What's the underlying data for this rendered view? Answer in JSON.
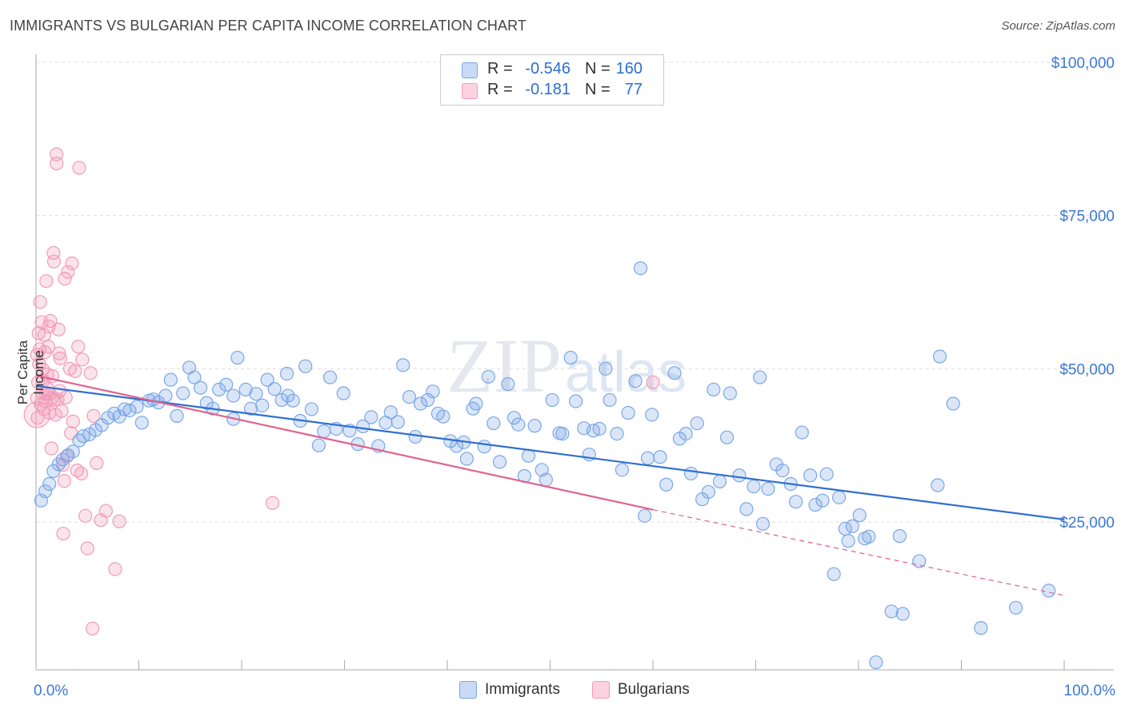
{
  "title": "IMMIGRANTS VS BULGARIAN PER CAPITA INCOME CORRELATION CHART",
  "source": "Source: ZipAtlas.com",
  "watermark": {
    "zip": "ZIP",
    "atlas": "atlas"
  },
  "legend": {
    "rows": [
      {
        "r_label": "R =",
        "r_value": "-0.546",
        "n_label": "N =",
        "n_value": "160",
        "color": "#7aa7e6"
      },
      {
        "r_label": "R =",
        "r_value": "-0.181",
        "n_label": "N =",
        "n_value": "77",
        "color": "#f29bb8"
      }
    ]
  },
  "bottom_legend": {
    "immigrants": "Immigrants",
    "bulgarians": "Bulgarians"
  },
  "chart_data": {
    "type": "scatter",
    "title": "IMMIGRANTS VS BULGARIAN PER CAPITA INCOME CORRELATION CHART",
    "xlabel": "",
    "ylabel": "Per Capita Income",
    "xlim": [
      0,
      100
    ],
    "ylim": [
      0,
      105000
    ],
    "x_tick_labels": [
      "0.0%",
      "100.0%"
    ],
    "y_ticks": [
      25000,
      50000,
      75000,
      100000
    ],
    "y_tick_labels": [
      "$25,000",
      "$50,000",
      "$75,000",
      "$100,000"
    ],
    "grid": true,
    "legend_position": "top-center",
    "series": [
      {
        "name": "Immigrants",
        "color": "#7aa7e6",
        "line_color": "#2f6fd0",
        "trend": {
          "x0": 0,
          "y0": 47200,
          "x1": 100,
          "y1": 25400
        },
        "points": [
          [
            0.5,
            28500
          ],
          [
            0.9,
            30000
          ],
          [
            1.3,
            31200
          ],
          [
            1.7,
            33300
          ],
          [
            2.2,
            34400
          ],
          [
            2.6,
            35200
          ],
          [
            3.1,
            35900
          ],
          [
            3.6,
            36500
          ],
          [
            4.2,
            38300
          ],
          [
            4.6,
            39000
          ],
          [
            5.2,
            39300
          ],
          [
            5.8,
            40000
          ],
          [
            6.4,
            40800
          ],
          [
            7.0,
            42000
          ],
          [
            7.6,
            42700
          ],
          [
            8.1,
            42200
          ],
          [
            8.6,
            43400
          ],
          [
            9.1,
            43200
          ],
          [
            9.8,
            43800
          ],
          [
            10.3,
            41200
          ],
          [
            11.0,
            44800
          ],
          [
            11.4,
            45000
          ],
          [
            11.9,
            44500
          ],
          [
            12.6,
            45600
          ],
          [
            13.1,
            48200
          ],
          [
            13.7,
            42300
          ],
          [
            14.3,
            46000
          ],
          [
            14.9,
            50200
          ],
          [
            15.4,
            48600
          ],
          [
            16.0,
            46900
          ],
          [
            16.6,
            44400
          ],
          [
            17.2,
            43500
          ],
          [
            17.8,
            46600
          ],
          [
            18.5,
            47400
          ],
          [
            19.2,
            45600
          ],
          [
            19.2,
            41800
          ],
          [
            19.6,
            51800
          ],
          [
            20.4,
            46600
          ],
          [
            20.9,
            43500
          ],
          [
            21.4,
            45900
          ],
          [
            22.0,
            44000
          ],
          [
            22.5,
            48200
          ],
          [
            23.2,
            46700
          ],
          [
            23.9,
            44900
          ],
          [
            24.5,
            45600
          ],
          [
            24.4,
            49200
          ],
          [
            25.0,
            44800
          ],
          [
            25.7,
            41500
          ],
          [
            26.2,
            50400
          ],
          [
            26.8,
            43400
          ],
          [
            27.5,
            37500
          ],
          [
            28.0,
            39800
          ],
          [
            28.6,
            48600
          ],
          [
            29.2,
            40200
          ],
          [
            29.9,
            46000
          ],
          [
            30.5,
            39900
          ],
          [
            31.3,
            37700
          ],
          [
            31.8,
            40600
          ],
          [
            32.6,
            42100
          ],
          [
            33.3,
            37400
          ],
          [
            34.0,
            41200
          ],
          [
            34.5,
            42900
          ],
          [
            35.2,
            41300
          ],
          [
            35.7,
            50600
          ],
          [
            36.3,
            45400
          ],
          [
            36.9,
            38900
          ],
          [
            37.4,
            44300
          ],
          [
            38.1,
            44900
          ],
          [
            38.6,
            46300
          ],
          [
            39.1,
            42700
          ],
          [
            39.6,
            42200
          ],
          [
            40.3,
            38200
          ],
          [
            40.9,
            37400
          ],
          [
            41.6,
            38000
          ],
          [
            41.9,
            35300
          ],
          [
            42.5,
            43500
          ],
          [
            42.8,
            44300
          ],
          [
            43.6,
            37300
          ],
          [
            44.0,
            48700
          ],
          [
            44.5,
            41100
          ],
          [
            45.1,
            34800
          ],
          [
            45.9,
            47500
          ],
          [
            46.5,
            42000
          ],
          [
            46.9,
            40900
          ],
          [
            47.5,
            32500
          ],
          [
            47.9,
            35800
          ],
          [
            48.5,
            40700
          ],
          [
            49.2,
            33500
          ],
          [
            49.6,
            31900
          ],
          [
            50.2,
            44900
          ],
          [
            50.9,
            39500
          ],
          [
            51.2,
            39400
          ],
          [
            52.0,
            51800
          ],
          [
            52.5,
            44700
          ],
          [
            53.3,
            40300
          ],
          [
            53.8,
            36000
          ],
          [
            54.2,
            39900
          ],
          [
            54.8,
            40200
          ],
          [
            55.4,
            50000
          ],
          [
            55.8,
            44900
          ],
          [
            56.5,
            39400
          ],
          [
            57.0,
            33500
          ],
          [
            57.6,
            42800
          ],
          [
            58.3,
            48000
          ],
          [
            58.8,
            66400
          ],
          [
            59.2,
            26000
          ],
          [
            59.5,
            35400
          ],
          [
            59.9,
            42500
          ],
          [
            60.7,
            35600
          ],
          [
            61.3,
            31100
          ],
          [
            62.1,
            49300
          ],
          [
            62.6,
            38600
          ],
          [
            63.2,
            39400
          ],
          [
            63.7,
            32900
          ],
          [
            64.3,
            41100
          ],
          [
            64.8,
            28700
          ],
          [
            65.4,
            29900
          ],
          [
            65.9,
            46600
          ],
          [
            66.5,
            31600
          ],
          [
            67.2,
            38800
          ],
          [
            67.5,
            46000
          ],
          [
            68.4,
            32600
          ],
          [
            69.1,
            27100
          ],
          [
            69.8,
            30800
          ],
          [
            70.4,
            48600
          ],
          [
            70.7,
            24700
          ],
          [
            71.2,
            30400
          ],
          [
            72.0,
            34400
          ],
          [
            72.6,
            33400
          ],
          [
            73.4,
            31200
          ],
          [
            73.9,
            28300
          ],
          [
            74.5,
            39600
          ],
          [
            75.3,
            32600
          ],
          [
            75.8,
            27800
          ],
          [
            76.5,
            28500
          ],
          [
            76.9,
            32800
          ],
          [
            77.6,
            16500
          ],
          [
            78.1,
            29000
          ],
          [
            78.7,
            23900
          ],
          [
            79.0,
            21900
          ],
          [
            79.4,
            24300
          ],
          [
            80.1,
            26100
          ],
          [
            80.6,
            22300
          ],
          [
            81.0,
            22600
          ],
          [
            81.7,
            2100
          ],
          [
            83.2,
            10400
          ],
          [
            84.0,
            22700
          ],
          [
            84.3,
            10000
          ],
          [
            85.9,
            18600
          ],
          [
            87.7,
            31000
          ],
          [
            87.9,
            52000
          ],
          [
            89.2,
            44300
          ],
          [
            91.9,
            7700
          ],
          [
            95.3,
            11000
          ],
          [
            98.5,
            13800
          ]
        ]
      },
      {
        "name": "Bulgarians",
        "color": "#f29bb8",
        "line_color": "#e0638e",
        "trend": {
          "x0": 0,
          "y0": 48900,
          "x1": 60,
          "y1": 27000
        },
        "trend_dashed_to": {
          "x1": 100,
          "y1": 13000
        },
        "points": [
          [
            0.1,
            52300
          ],
          [
            0.1,
            45200
          ],
          [
            0.15,
            42000
          ],
          [
            0.2,
            47800
          ],
          [
            0.25,
            55800
          ],
          [
            0.3,
            50800
          ],
          [
            0.35,
            53200
          ],
          [
            0.4,
            60900
          ],
          [
            0.45,
            44200
          ],
          [
            0.55,
            57600
          ],
          [
            0.6,
            46100
          ],
          [
            0.65,
            49900
          ],
          [
            0.7,
            48100
          ],
          [
            0.75,
            43400
          ],
          [
            0.8,
            55500
          ],
          [
            0.85,
            52700
          ],
          [
            0.9,
            44700
          ],
          [
            0.95,
            45900
          ],
          [
            1.0,
            64300
          ],
          [
            1.1,
            49100
          ],
          [
            1.15,
            46700
          ],
          [
            1.2,
            53600
          ],
          [
            1.25,
            56900
          ],
          [
            1.3,
            42800
          ],
          [
            1.35,
            45900
          ],
          [
            1.4,
            57800
          ],
          [
            1.5,
            37000
          ],
          [
            1.55,
            45200
          ],
          [
            1.6,
            48800
          ],
          [
            1.7,
            68900
          ],
          [
            1.75,
            67500
          ],
          [
            1.8,
            44900
          ],
          [
            1.9,
            42500
          ],
          [
            2.0,
            85000
          ],
          [
            2.0,
            83500
          ],
          [
            2.1,
            45000
          ],
          [
            2.2,
            56400
          ],
          [
            2.25,
            52500
          ],
          [
            2.3,
            46400
          ],
          [
            2.35,
            51700
          ],
          [
            2.5,
            43100
          ],
          [
            2.6,
            34300
          ],
          [
            2.65,
            23100
          ],
          [
            2.75,
            31700
          ],
          [
            2.8,
            64700
          ],
          [
            2.9,
            45300
          ],
          [
            3.0,
            35700
          ],
          [
            3.1,
            65800
          ],
          [
            3.3,
            50000
          ],
          [
            3.4,
            39500
          ],
          [
            3.5,
            67200
          ],
          [
            3.6,
            41400
          ],
          [
            3.8,
            49600
          ],
          [
            4.0,
            33400
          ],
          [
            4.1,
            53600
          ],
          [
            4.2,
            82800
          ],
          [
            4.4,
            32900
          ],
          [
            4.5,
            51500
          ],
          [
            4.8,
            26000
          ],
          [
            5.0,
            20700
          ],
          [
            5.3,
            49300
          ],
          [
            5.5,
            7600
          ],
          [
            5.6,
            42300
          ],
          [
            5.9,
            34600
          ],
          [
            6.3,
            25300
          ],
          [
            6.8,
            26800
          ],
          [
            7.7,
            17300
          ],
          [
            8.1,
            25100
          ],
          [
            23.0,
            28100
          ],
          [
            60.0,
            47800
          ]
        ]
      }
    ]
  }
}
